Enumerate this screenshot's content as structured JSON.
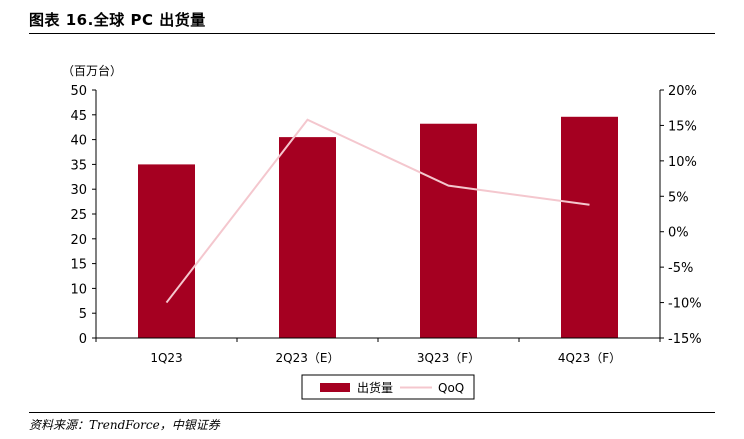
{
  "figure": {
    "title": "图表 16.全球 PC 出货量",
    "source": "资料来源：TrendForce，中银证券"
  },
  "chart_data": {
    "type": "bar+line",
    "categories": [
      "1Q23",
      "2Q23（E）",
      "3Q23（F）",
      "4Q23（F）"
    ],
    "y_left": {
      "label": "（百万台）",
      "ylim": [
        0,
        50
      ],
      "ticks": [
        "0",
        "5",
        "10",
        "15",
        "20",
        "25",
        "30",
        "35",
        "40",
        "45",
        "50"
      ]
    },
    "y_right": {
      "ylim": [
        -15,
        20
      ],
      "ticks": [
        "-15%",
        "-10%",
        "-5%",
        "0%",
        "5%",
        "10%",
        "15%",
        "20%"
      ]
    },
    "series": [
      {
        "name": "出货量",
        "kind": "bar",
        "axis": "left",
        "color": "#A50021",
        "values": [
          35.0,
          40.5,
          43.2,
          44.6
        ]
      },
      {
        "name": "QoQ",
        "kind": "line",
        "axis": "right",
        "color": "#F4C7CE",
        "values": [
          -10.0,
          15.8,
          6.5,
          3.8
        ]
      }
    ],
    "grid": false,
    "legend": "bottom-center"
  }
}
